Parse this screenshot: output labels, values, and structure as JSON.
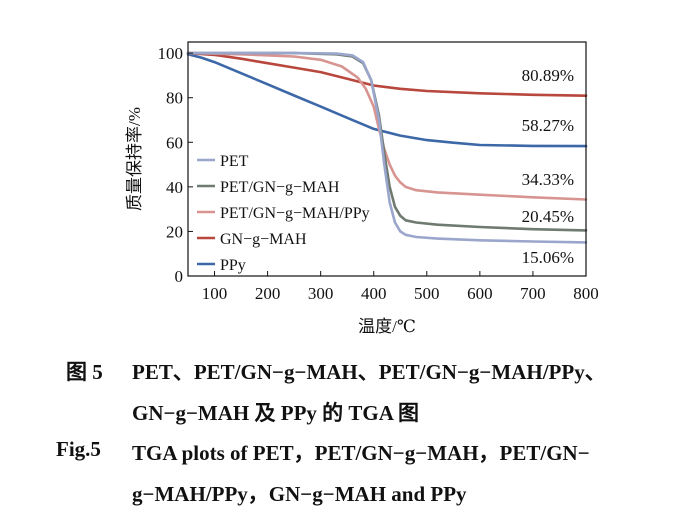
{
  "chart_data": {
    "type": "line",
    "xlabel": "温度/℃",
    "ylabel": "质量保持率/%",
    "xlim": [
      50,
      800
    ],
    "ylim": [
      0,
      105
    ],
    "x_ticks": [
      "100",
      "200",
      "300",
      "400",
      "500",
      "600",
      "700",
      "800"
    ],
    "y_ticks": [
      "0",
      "20",
      "40",
      "60",
      "80",
      "100"
    ],
    "grid": false,
    "legend_position": "lower-left",
    "series": [
      {
        "name": "PET",
        "color": "#9aa6cc",
        "x": [
          50,
          150,
          250,
          330,
          360,
          380,
          395,
          410,
          420,
          430,
          440,
          450,
          460,
          480,
          520,
          600,
          700,
          800
        ],
        "y": [
          100,
          100,
          100,
          99.8,
          99,
          96,
          88,
          70,
          50,
          33,
          24,
          20,
          18.5,
          17.5,
          16.8,
          16,
          15.5,
          15.06
        ],
        "end_label": ""
      },
      {
        "name": "PET/GN-g-MAH",
        "color": "#6f7a70",
        "x": [
          50,
          150,
          250,
          330,
          360,
          380,
          395,
          410,
          420,
          430,
          440,
          450,
          460,
          480,
          520,
          600,
          700,
          800
        ],
        "y": [
          100,
          100,
          100,
          99.5,
          98.5,
          95.5,
          88,
          72,
          55,
          40,
          31,
          27,
          25,
          24,
          23,
          22,
          21,
          20.45
        ],
        "end_label": "20.45%"
      },
      {
        "name": "PET/GN-g-MAH/PPy",
        "color": "#d79490",
        "x": [
          50,
          150,
          250,
          300,
          340,
          370,
          385,
          400,
          410,
          420,
          430,
          440,
          450,
          460,
          480,
          520,
          600,
          700,
          800
        ],
        "y": [
          100,
          99.5,
          98.5,
          97,
          94,
          89,
          84,
          76,
          66,
          57,
          50,
          45,
          42,
          40,
          38.5,
          37.5,
          36.5,
          35.3,
          34.33
        ],
        "end_label": "34.33%"
      },
      {
        "name": "GN-g-MAH",
        "color": "#b8473d",
        "x": [
          50,
          100,
          150,
          200,
          250,
          300,
          350,
          400,
          450,
          500,
          600,
          700,
          800
        ],
        "y": [
          100,
          99.2,
          97.5,
          95.5,
          93.5,
          91.5,
          88.5,
          85.5,
          84,
          83,
          82,
          81.3,
          80.89
        ],
        "end_label": "80.89%"
      },
      {
        "name": "PPy",
        "color": "#3d68a8",
        "x": [
          50,
          75,
          100,
          150,
          200,
          250,
          300,
          350,
          400,
          450,
          500,
          550,
          600,
          700,
          800
        ],
        "y": [
          99.5,
          98,
          96,
          91,
          86,
          81,
          76,
          71,
          66,
          63,
          61,
          59.8,
          58.8,
          58.4,
          58.27
        ],
        "end_label": "58.27%"
      }
    ],
    "pet_end_label": "15.06%"
  },
  "caption": {
    "line1_num": "图 5",
    "line1_text": "PET、PET/GN−g−MAH、PET/GN−g−MAH/PPy、",
    "line2_text": "GN−g−MAH 及 PPy 的 TGA 图",
    "line3_num": "Fig.5",
    "line3_text": "TGA plots of PET，PET/GN−g−MAH，PET/GN−",
    "line4_text": "g−MAH/PPy，GN−g−MAH and PPy"
  }
}
